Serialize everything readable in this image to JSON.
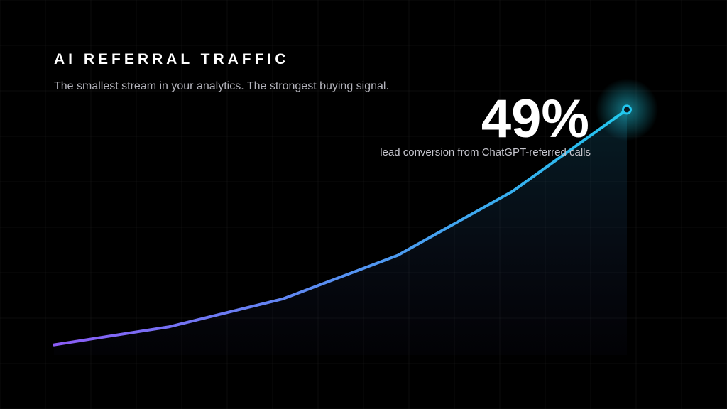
{
  "chart_data": {
    "type": "line",
    "title": "AI REFERRAL TRAFFIC",
    "subtitle": "The smallest stream in your analytics. The strongest buying signal.",
    "annotation": {
      "stat": "49%",
      "caption": "lead conversion from ChatGPT-referred calls"
    },
    "categories": [
      null,
      null,
      null,
      null,
      null,
      null
    ],
    "series": [
      {
        "color": [
          "#8b5cf6",
          "#22c5ee"
        ],
        "values": [
          4,
          11,
          22,
          39,
          64,
          96
        ]
      }
    ],
    "ylim": [
      0,
      100
    ]
  }
}
